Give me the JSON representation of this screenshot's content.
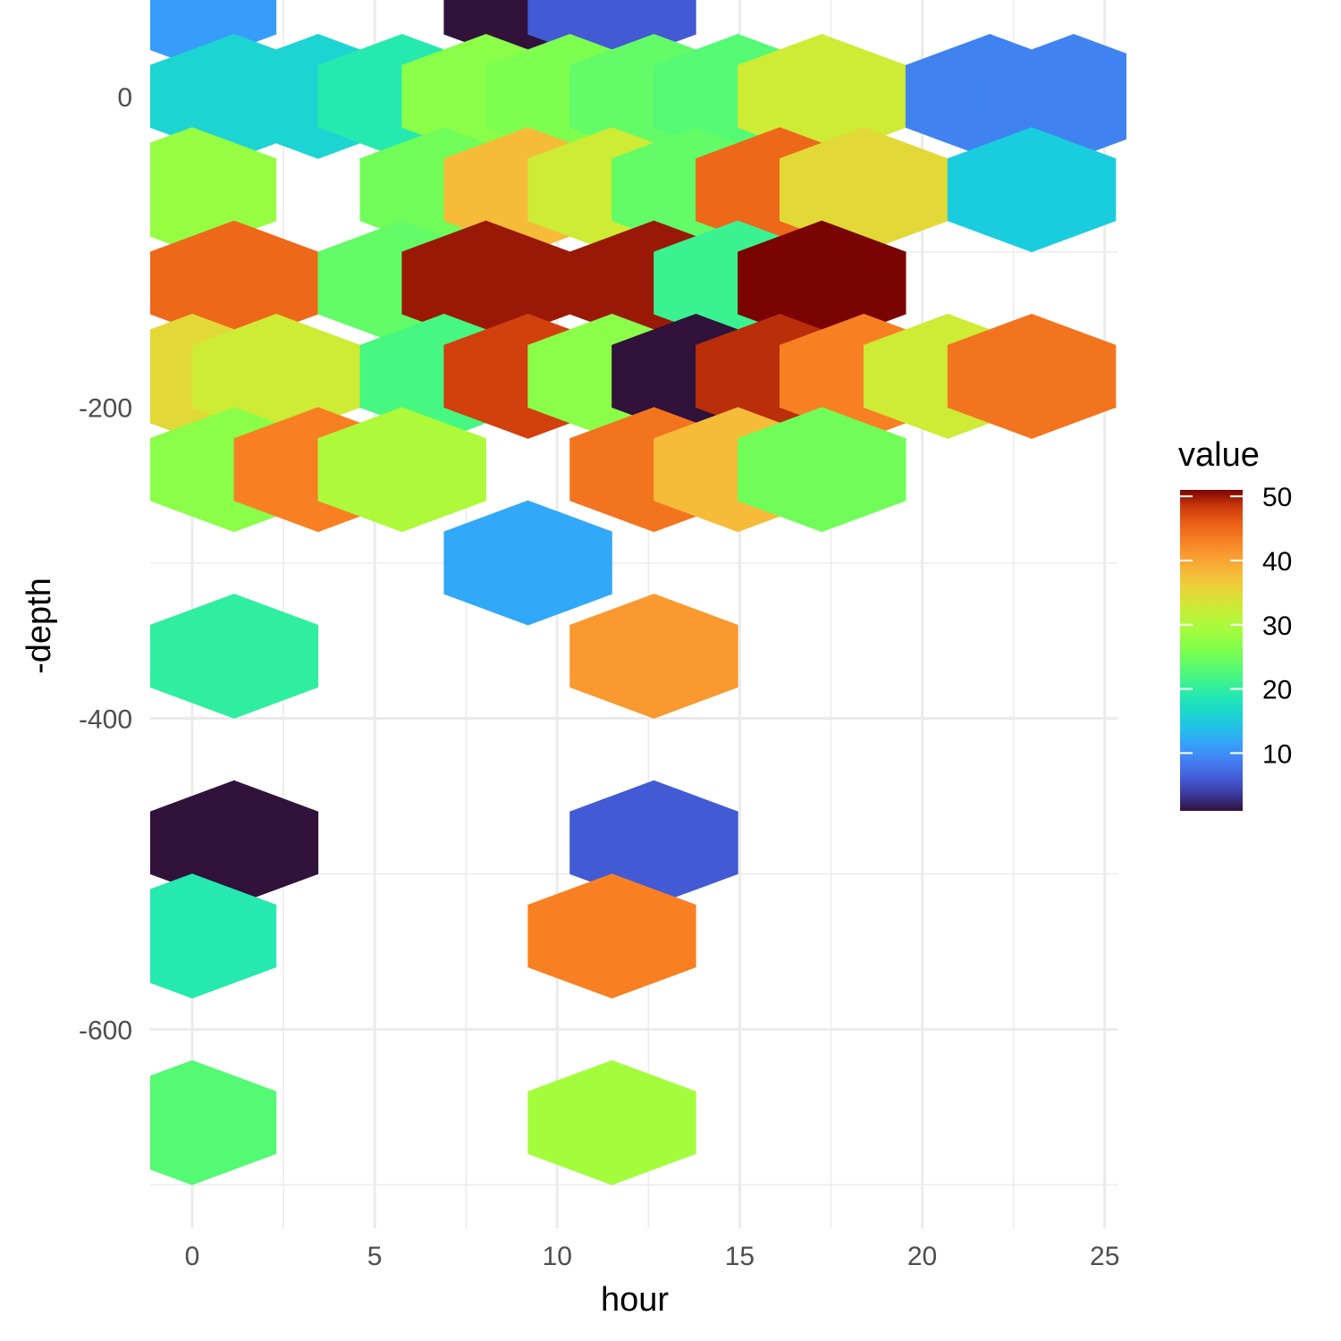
{
  "chart_data": {
    "type": "heatmap",
    "xlabel": "hour",
    "ylabel": "-depth",
    "xlim": [
      -1.15,
      25.35
    ],
    "ylim": [
      -728,
      62
    ],
    "x_ticks": [
      0,
      5,
      10,
      15,
      20,
      25
    ],
    "x_tick_labels": [
      "0",
      "5",
      "10",
      "15",
      "20",
      "25"
    ],
    "y_ticks": [
      0,
      -200,
      -400,
      -600
    ],
    "y_tick_labels": [
      "0",
      "-200",
      "-400",
      "-600"
    ],
    "grid": true,
    "legend": {
      "title": "value",
      "position": "right",
      "range": [
        1,
        51
      ],
      "breaks": [
        10,
        20,
        30,
        40,
        50
      ],
      "break_labels": [
        "10",
        "20",
        "30",
        "40",
        "50"
      ],
      "colormap": "turbo"
    },
    "hex": {
      "dx": 2.3,
      "dy": 60
    },
    "cells": [
      {
        "x": 0.0,
        "y": 60,
        "value": 11
      },
      {
        "x": 9.2,
        "y": 60,
        "value": 1
      },
      {
        "x": 11.5,
        "y": 60,
        "value": 6
      },
      {
        "x": 1.15,
        "y": 0,
        "value": 16
      },
      {
        "x": 3.45,
        "y": 0,
        "value": 16
      },
      {
        "x": 5.75,
        "y": 0,
        "value": 19
      },
      {
        "x": 8.05,
        "y": 0,
        "value": 27
      },
      {
        "x": 10.35,
        "y": 0,
        "value": 26
      },
      {
        "x": 12.65,
        "y": 0,
        "value": 24
      },
      {
        "x": 14.95,
        "y": 0,
        "value": 23
      },
      {
        "x": 17.25,
        "y": 0,
        "value": 33
      },
      {
        "x": 21.85,
        "y": 0,
        "value": 9
      },
      {
        "x": 24.15,
        "y": 0,
        "value": 9
      },
      {
        "x": 0.0,
        "y": -60,
        "value": 28
      },
      {
        "x": 6.9,
        "y": -60,
        "value": 25
      },
      {
        "x": 9.2,
        "y": -60,
        "value": 38
      },
      {
        "x": 11.5,
        "y": -60,
        "value": 33
      },
      {
        "x": 13.8,
        "y": -60,
        "value": 24
      },
      {
        "x": 16.1,
        "y": -60,
        "value": 45
      },
      {
        "x": 18.4,
        "y": -60,
        "value": 35
      },
      {
        "x": 23.0,
        "y": -60,
        "value": 15
      },
      {
        "x": 1.15,
        "y": -120,
        "value": 45
      },
      {
        "x": 5.75,
        "y": -120,
        "value": 24
      },
      {
        "x": 8.05,
        "y": -120,
        "value": 50
      },
      {
        "x": 12.65,
        "y": -120,
        "value": 50
      },
      {
        "x": 14.95,
        "y": -120,
        "value": 21
      },
      {
        "x": 17.25,
        "y": -120,
        "value": 51
      },
      {
        "x": 0.0,
        "y": -180,
        "value": 35
      },
      {
        "x": 2.3,
        "y": -180,
        "value": 33
      },
      {
        "x": 6.9,
        "y": -180,
        "value": 22
      },
      {
        "x": 9.2,
        "y": -180,
        "value": 48
      },
      {
        "x": 11.5,
        "y": -180,
        "value": 27
      },
      {
        "x": 13.8,
        "y": -180,
        "value": 1
      },
      {
        "x": 16.1,
        "y": -180,
        "value": 49
      },
      {
        "x": 18.4,
        "y": -180,
        "value": 43
      },
      {
        "x": 20.7,
        "y": -180,
        "value": 33
      },
      {
        "x": 23.0,
        "y": -180,
        "value": 44
      },
      {
        "x": 1.15,
        "y": -240,
        "value": 27
      },
      {
        "x": 3.45,
        "y": -240,
        "value": 43
      },
      {
        "x": 5.75,
        "y": -240,
        "value": 30
      },
      {
        "x": 12.65,
        "y": -240,
        "value": 44
      },
      {
        "x": 14.95,
        "y": -240,
        "value": 38
      },
      {
        "x": 17.25,
        "y": -240,
        "value": 25
      },
      {
        "x": 9.2,
        "y": -300,
        "value": 12
      },
      {
        "x": 1.15,
        "y": -360,
        "value": 20
      },
      {
        "x": 12.65,
        "y": -360,
        "value": 41
      },
      {
        "x": 1.15,
        "y": -480,
        "value": 1
      },
      {
        "x": 12.65,
        "y": -480,
        "value": 6
      },
      {
        "x": 0.0,
        "y": -540,
        "value": 19
      },
      {
        "x": 11.5,
        "y": -540,
        "value": 43
      },
      {
        "x": 0.0,
        "y": -660,
        "value": 23
      },
      {
        "x": 11.5,
        "y": -660,
        "value": 29
      }
    ]
  }
}
